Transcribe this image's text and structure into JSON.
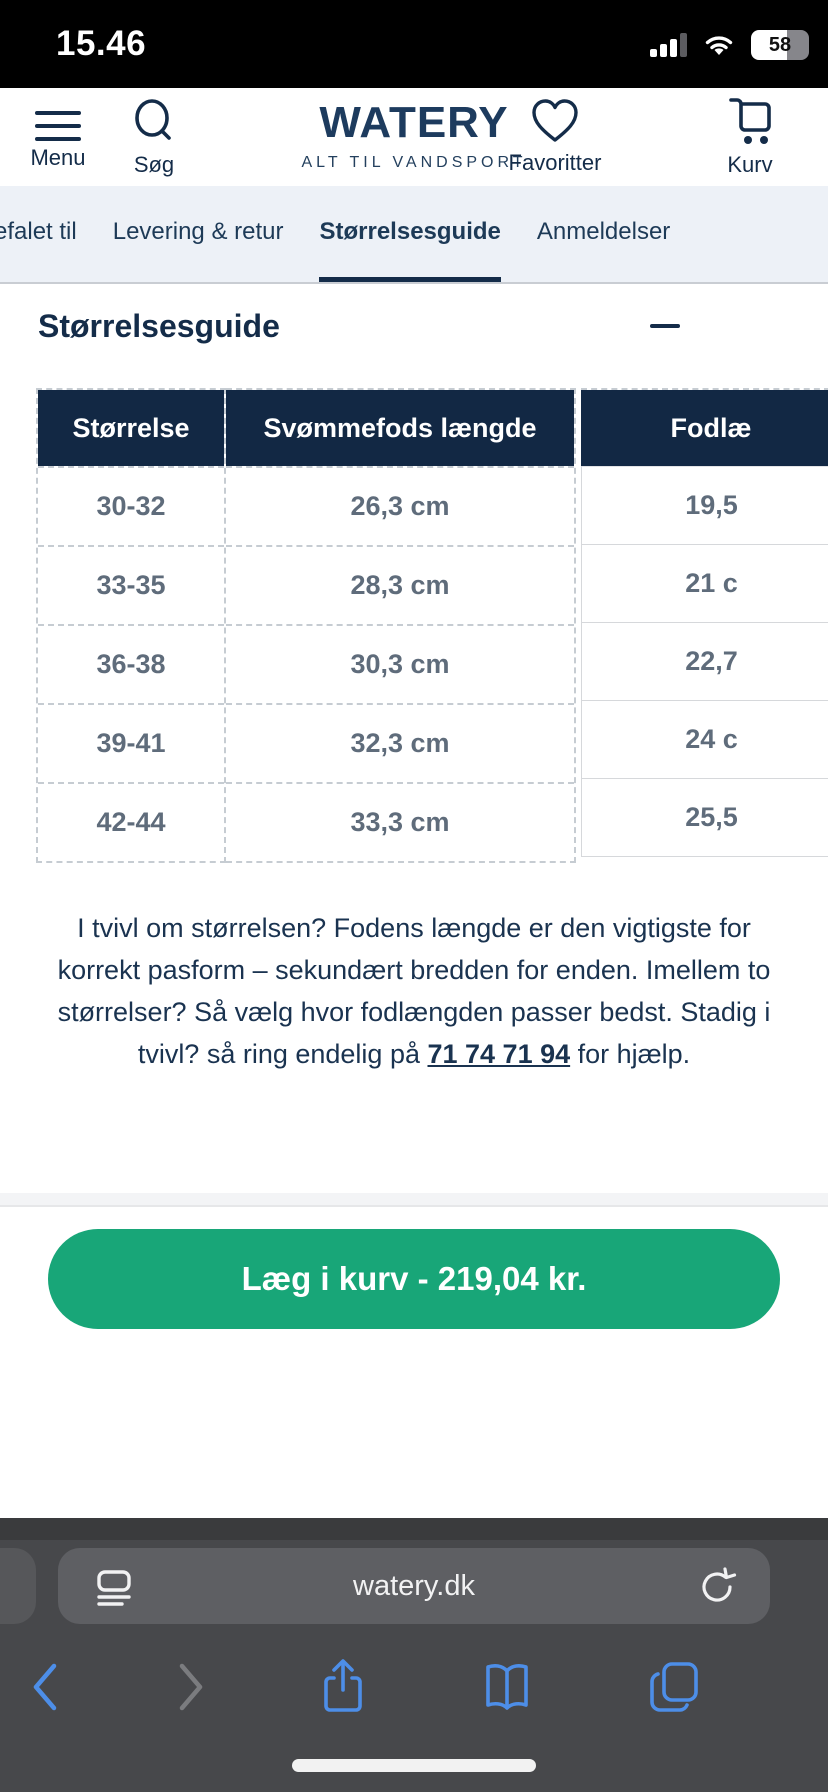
{
  "status_bar": {
    "time": "15.46",
    "battery_percent": "58"
  },
  "header": {
    "menu_label": "Menu",
    "search_label": "Søg",
    "logo": "WATERY",
    "tagline": "ALT TIL VANDSPORT",
    "favorites_label": "Favoritter",
    "cart_label": "Kurv"
  },
  "tabs": [
    {
      "label": "efalet til",
      "active": false
    },
    {
      "label": "Levering & retur",
      "active": false
    },
    {
      "label": "Størrelsesguide",
      "active": true
    },
    {
      "label": "Anmeldelser",
      "active": false
    }
  ],
  "size_guide": {
    "title": "Størrelsesguide",
    "table": {
      "headers": [
        "Størrelse",
        "Svømmefods længde",
        "Fodlæ"
      ],
      "rows": [
        [
          "30-32",
          "26,3 cm",
          "19,5"
        ],
        [
          "33-35",
          "28,3 cm",
          "21 c"
        ],
        [
          "36-38",
          "30,3 cm",
          "22,7"
        ],
        [
          "39-41",
          "32,3 cm",
          "24 c"
        ],
        [
          "42-44",
          "33,3 cm",
          "25,5"
        ]
      ]
    },
    "note_prefix": "I tvivl om størrelsen? Fodens længde er den vigtigste for korrekt pasform – sekundært bredden for enden. Imellem to størrelser? Så vælg hvor fodlængden passer bedst. Stadig i tvivl? så ring endelig på ",
    "phone": "71 74 71 94",
    "note_suffix": " for hjælp."
  },
  "add_to_cart_label": "Læg i kurv - 219,04 kr.",
  "browser": {
    "url": "watery.dk"
  },
  "icons": [
    "hamburger-icon",
    "search-icon",
    "heart-icon",
    "cart-icon",
    "minus-icon",
    "signal-icon",
    "wifi-icon",
    "battery-icon",
    "reader-icon",
    "reload-icon",
    "back-icon",
    "forward-icon",
    "share-icon",
    "bookmarks-icon",
    "tabs-icon"
  ],
  "colors": {
    "navy": "#1d3b5e",
    "table_header_bg": "#122844",
    "cell_text": "#5f6c7b",
    "tab_bar_bg": "#edf1f7",
    "button_green": "#18a678",
    "safari_blue": "#4d8ee8"
  }
}
